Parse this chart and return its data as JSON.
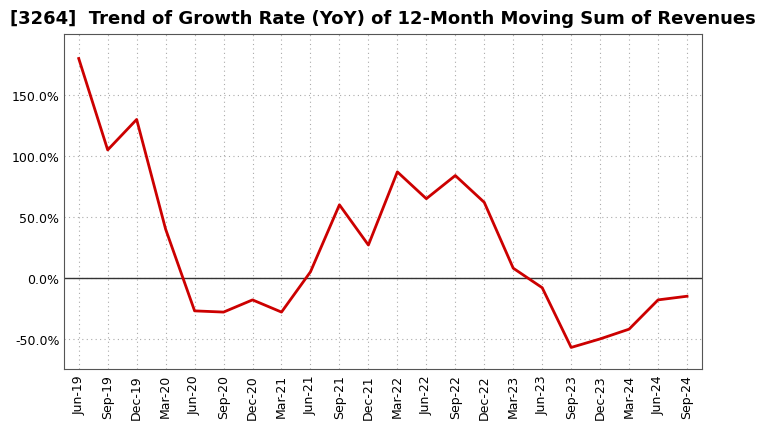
{
  "title": "[3264]  Trend of Growth Rate (YoY) of 12-Month Moving Sum of Revenues",
  "title_fontsize": 13,
  "line_color": "#CC0000",
  "line_width": 2.0,
  "background_color": "#ffffff",
  "plot_bg_color": "#ffffff",
  "grid_color": "#aaaaaa",
  "zero_line_color": "#333333",
  "x_labels": [
    "Jun-19",
    "Sep-19",
    "Dec-19",
    "Mar-20",
    "Jun-20",
    "Sep-20",
    "Dec-20",
    "Mar-21",
    "Jun-21",
    "Sep-21",
    "Dec-21",
    "Mar-22",
    "Jun-22",
    "Sep-22",
    "Dec-22",
    "Mar-23",
    "Jun-23",
    "Sep-23",
    "Dec-23",
    "Mar-24",
    "Jun-24",
    "Sep-24"
  ],
  "y_values": [
    180,
    105,
    130,
    40,
    -27,
    -28,
    -18,
    -28,
    5,
    60,
    27,
    87,
    65,
    84,
    62,
    8,
    -8,
    -57,
    -50,
    -42,
    -18,
    -15
  ],
  "ylim": [
    -75,
    200
  ],
  "yticks": [
    -50,
    0,
    50,
    100,
    150
  ],
  "tick_fontsize": 9,
  "xlabel_fontsize": 9
}
